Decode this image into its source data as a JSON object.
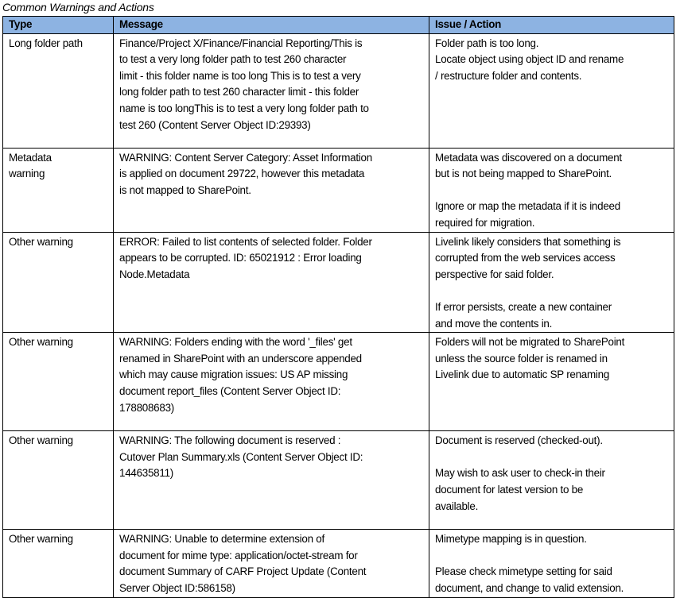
{
  "title": "Common Warnings and Actions",
  "colors": {
    "header_fill": "#8db3e2",
    "border": "#000000"
  },
  "columns": [
    "Type",
    "Message",
    "Issue / Action"
  ],
  "rows": [
    {
      "type": [
        "Long folder path"
      ],
      "message": [
        "Finance/Project X/Finance/Financial Reporting/This is",
        "to test a very long folder path to test 260 character",
        "limit - this folder name is too long This is to test a very",
        "long folder path to test 260 character limit - this folder",
        "name is too longThis is to test a very long folder path to",
        "test 260 (Content Server Object ID:29393)"
      ],
      "action": [
        "Folder path is too long.",
        "Locate object using object ID and rename",
        "/ restructure folder and contents."
      ]
    },
    {
      "type": [
        "Metadata",
        "warning"
      ],
      "message": [
        "WARNING: Content Server Category: Asset Information",
        "is applied on document 29722, however this metadata",
        "is not mapped to SharePoint."
      ],
      "action": [
        "Metadata was discovered on a document",
        "but is not being mapped to SharePoint.",
        "",
        "Ignore or map the metadata if it is indeed",
        "required for migration."
      ]
    },
    {
      "type": [
        "Other warning"
      ],
      "message": [
        "ERROR: Failed to list contents of selected folder. Folder",
        "appears to be corrupted. ID: 65021912 : Error loading",
        "Node.Metadata"
      ],
      "action": [
        "Livelink likely considers that something is",
        "corrupted from the web services access",
        "perspective for said folder.",
        "",
        "If error persists, create a new container",
        "and move the contents in."
      ]
    },
    {
      "type": [
        "Other warning"
      ],
      "message": [
        "WARNING: Folders ending with the word '_files' get",
        "renamed in SharePoint with an underscore appended",
        "which may cause migration issues: US AP missing",
        "document report_files (Content Server Object ID:",
        "178808683)"
      ],
      "action": [
        "Folders will not be migrated to SharePoint",
        "unless the source folder is renamed in",
        "Livelink due to automatic SP renaming"
      ]
    },
    {
      "type": [
        "Other warning"
      ],
      "message": [
        "WARNING: The following document is reserved :",
        "Cutover Plan Summary.xls (Content Server Object ID:",
        "144635811)"
      ],
      "action": [
        "Document is reserved (checked-out).",
        "",
        "May wish to ask user to check-in their",
        "document for latest version to be",
        "available."
      ]
    },
    {
      "type": [
        "Other warning"
      ],
      "message": [
        "WARNING: Unable to determine extension of",
        "document for mime type: application/octet-stream for",
        "document Summary of CARF Project Update (Content",
        "Server Object ID:586158)"
      ],
      "action": [
        "Mimetype mapping is in question.",
        "",
        "Please check mimetype setting for said",
        "document, and change to valid extension."
      ]
    }
  ]
}
